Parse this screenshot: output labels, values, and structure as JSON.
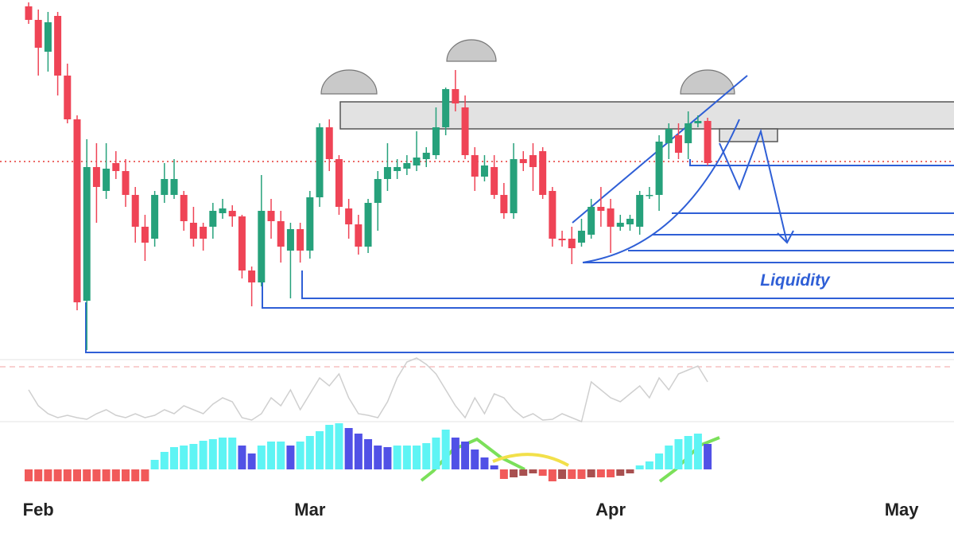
{
  "chart_data": {
    "type": "candlestick",
    "annotation": "Liquidity",
    "x": [
      0,
      1,
      2,
      3,
      4,
      5,
      6,
      7,
      8,
      9,
      10,
      11,
      12,
      13,
      14,
      15,
      16,
      17,
      18,
      19,
      20,
      21,
      22,
      23,
      24,
      25,
      26,
      27,
      28,
      29,
      30,
      31,
      32,
      33,
      34,
      35,
      36,
      37,
      38,
      39,
      40,
      41,
      42,
      43,
      44,
      45,
      46,
      47,
      48,
      49,
      50,
      51,
      52,
      53,
      54,
      55,
      56,
      57,
      58,
      59,
      60,
      61,
      62,
      63,
      64,
      65,
      66,
      67,
      68,
      69,
      70
    ],
    "open": [
      442,
      425,
      385,
      430,
      355,
      300,
      72,
      240,
      210,
      245,
      235,
      205,
      165,
      150,
      205,
      205,
      205,
      170,
      165,
      165,
      182,
      185,
      178,
      110,
      95,
      185,
      172,
      135,
      162,
      135,
      202,
      290,
      250,
      188,
      168,
      140,
      195,
      225,
      235,
      238,
      242,
      250,
      255,
      290,
      338,
      315,
      255,
      228,
      240,
      205,
      182,
      250,
      255,
      260,
      210,
      150,
      150,
      145,
      155,
      190,
      188,
      165,
      168,
      165,
      205,
      205,
      270,
      280,
      270,
      295,
      298
    ],
    "high": [
      447,
      438,
      435,
      435,
      370,
      305,
      275,
      270,
      270,
      260,
      250,
      215,
      180,
      210,
      245,
      250,
      210,
      190,
      170,
      195,
      200,
      192,
      180,
      115,
      230,
      200,
      185,
      170,
      170,
      210,
      295,
      300,
      255,
      200,
      180,
      200,
      235,
      270,
      250,
      255,
      285,
      265,
      315,
      340,
      362,
      330,
      265,
      255,
      255,
      220,
      270,
      260,
      270,
      265,
      215,
      160,
      165,
      175,
      200,
      215,
      200,
      180,
      180,
      210,
      215,
      280,
      295,
      295,
      310,
      305,
      302
    ],
    "low": [
      420,
      355,
      360,
      330,
      295,
      60,
      10,
      170,
      200,
      225,
      190,
      145,
      122,
      140,
      195,
      200,
      160,
      140,
      135,
      150,
      175,
      165,
      100,
      65,
      90,
      150,
      120,
      75,
      120,
      125,
      190,
      235,
      180,
      150,
      130,
      132,
      160,
      210,
      225,
      230,
      235,
      240,
      250,
      280,
      310,
      250,
      210,
      222,
      200,
      175,
      175,
      235,
      210,
      200,
      140,
      140,
      118,
      140,
      150,
      165,
      132,
      160,
      160,
      155,
      200,
      185,
      250,
      250,
      250,
      290,
      242
    ],
    "close": [
      425,
      390,
      422,
      355,
      300,
      70,
      240,
      215,
      238,
      235,
      205,
      165,
      145,
      205,
      225,
      225,
      172,
      150,
      150,
      185,
      188,
      178,
      110,
      95,
      185,
      172,
      140,
      162,
      135,
      202,
      290,
      250,
      190,
      168,
      140,
      195,
      225,
      240,
      240,
      245,
      252,
      258,
      290,
      338,
      320,
      255,
      228,
      242,
      205,
      182,
      250,
      245,
      240,
      205,
      150,
      148,
      138,
      160,
      190,
      185,
      165,
      170,
      175,
      205,
      205,
      272,
      288,
      258,
      295,
      298,
      245
    ],
    "up_color": "#26a17b",
    "down_color": "#ef4456",
    "xlim": [
      -2.95,
      95.4
    ],
    "ylim": [
      0,
      450
    ],
    "xticks": [
      {
        "value": 1,
        "label": "Feb"
      },
      {
        "value": 29,
        "label": "Mar"
      },
      {
        "value": 60,
        "label": "Apr"
      },
      {
        "value": 90,
        "label": "May"
      }
    ],
    "oscillator": [
      40,
      20,
      10,
      5,
      8,
      5,
      3,
      10,
      15,
      8,
      5,
      10,
      5,
      8,
      15,
      10,
      20,
      15,
      10,
      22,
      30,
      25,
      5,
      2,
      10,
      30,
      20,
      40,
      15,
      35,
      55,
      45,
      60,
      30,
      10,
      8,
      5,
      25,
      55,
      75,
      80,
      72,
      60,
      40,
      20,
      5,
      30,
      10,
      35,
      30,
      15,
      5,
      10,
      2,
      3,
      10,
      5,
      0,
      50,
      40,
      30,
      25,
      35,
      45,
      30,
      55,
      40,
      60,
      65,
      70,
      50
    ],
    "histogram": [
      -15,
      -15,
      -15,
      -15,
      -15,
      -15,
      -15,
      -15,
      -15,
      -15,
      -15,
      -15,
      -15,
      12,
      22,
      28,
      30,
      32,
      36,
      38,
      40,
      40,
      30,
      20,
      30,
      35,
      35,
      30,
      35,
      42,
      48,
      56,
      58,
      52,
      45,
      38,
      30,
      28,
      30,
      30,
      30,
      33,
      40,
      50,
      40,
      35,
      25,
      15,
      5,
      -12,
      -10,
      -8,
      -5,
      -8,
      -15,
      -12,
      -12,
      -12,
      -10,
      -10,
      -10,
      -8,
      -5,
      5,
      10,
      20,
      30,
      38,
      42,
      45,
      32
    ]
  }
}
